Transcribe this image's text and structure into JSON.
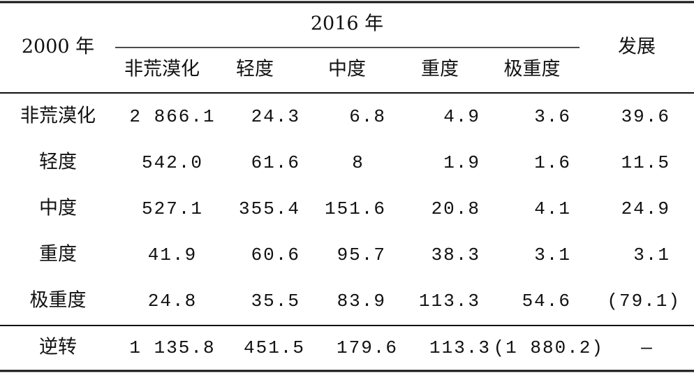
{
  "table": {
    "header": {
      "stub": "2000 年",
      "group": "2016 年",
      "columns": [
        "非荒漠化",
        "轻度",
        "中度",
        "重度",
        "极重度"
      ],
      "last": "发展"
    },
    "rows": [
      [
        "非荒漠化",
        "2 866.1",
        "24.3",
        "6.8",
        "4.9",
        "3.6",
        "39.6"
      ],
      [
        "轻度",
        "542.0",
        "61.6",
        "8",
        "1.9",
        "1.6",
        "11.5"
      ],
      [
        "中度",
        "527.1",
        "355.4",
        "151.6",
        "20.8",
        "4.1",
        "24.9"
      ],
      [
        "重度",
        "41.9",
        "60.6",
        "95.7",
        "38.3",
        "3.1",
        "3.1"
      ],
      [
        "极重度",
        "24.8",
        "35.5",
        "83.9",
        "113.3",
        "54.6",
        "(79.1)"
      ]
    ],
    "footer": [
      "逆转",
      "1 135.8",
      "451.5",
      "179.6",
      "113.3",
      "(1 880.2)",
      "—"
    ]
  }
}
